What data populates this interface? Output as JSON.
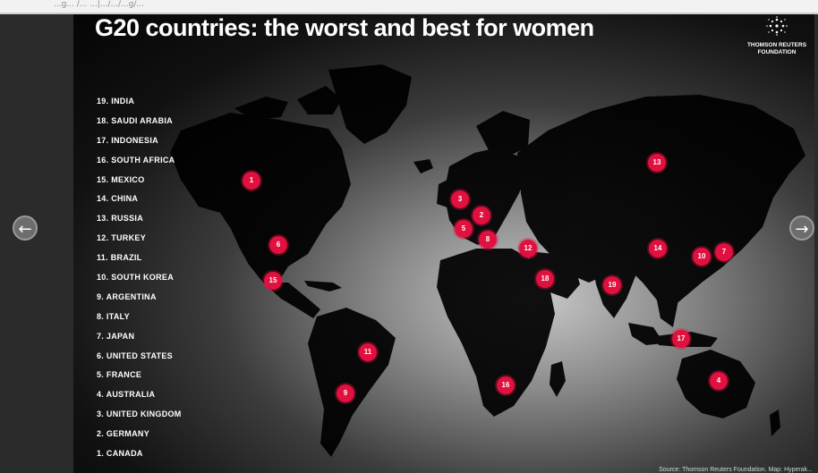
{
  "browser": {
    "url_fragment": "...g...  /... ...|.../.../...g/..."
  },
  "slide": {
    "title": "G20 countries: the worst and best for women",
    "logo_line1": "THOMSON REUTERS",
    "logo_line2": "FOUNDATION",
    "source": "Source: Thomson Reuters Foundation. Map: Hyperak...",
    "rankings": [
      "19. INDIA",
      "18. SAUDI ARABIA",
      "17. INDONESIA",
      "16. SOUTH AFRICA",
      "15. MEXICO",
      "14. CHINA",
      "13. RUSSIA",
      "12. TURKEY",
      "11. BRAZIL",
      "10. SOUTH KOREA",
      "9. ARGENTINA",
      "8. ITALY",
      "7. JAPAN",
      "6. UNITED STATES",
      "5. FRANCE",
      "4. AUSTRALIA",
      "3. UNITED KINGDOM",
      "2. GERMANY",
      "1. CANADA"
    ],
    "markers": [
      "1",
      "6",
      "15",
      "11",
      "9",
      "3",
      "2",
      "5",
      "8",
      "12",
      "18",
      "19",
      "14",
      "13",
      "10",
      "7",
      "17",
      "16",
      "4"
    ]
  },
  "navigation": {
    "prev_icon": "left-arrow-icon",
    "next_icon": "right-arrow-icon",
    "prev_glyph": "←",
    "next_glyph": "→"
  },
  "colors": {
    "marker": "#e0103f",
    "title": "#ffffff"
  }
}
